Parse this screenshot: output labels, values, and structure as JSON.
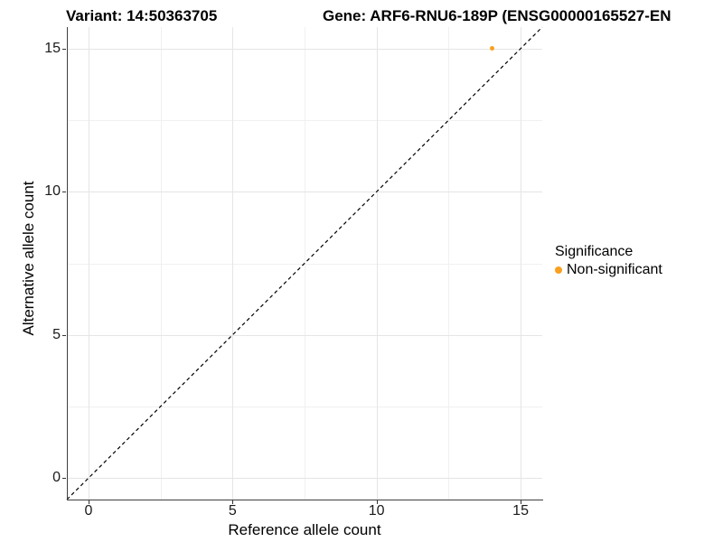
{
  "titles": {
    "variant": "Variant: 14:50363705",
    "gene": "Gene: ARF6-RNU6-189P (ENSG00000165527-EN"
  },
  "chart_data": {
    "type": "scatter",
    "title_left": "Variant: 14:50363705",
    "title_right": "Gene: ARF6-RNU6-189P (ENSG00000165527-EN",
    "xlabel": "Reference allele count",
    "ylabel": "Alternative allele count",
    "xlim": [
      -0.75,
      15.75
    ],
    "ylim": [
      -0.75,
      15.75
    ],
    "x_major_ticks": [
      0,
      5,
      10,
      15
    ],
    "y_major_ticks": [
      0,
      5,
      10,
      15
    ],
    "x_minor_gridlines": [
      2.5,
      7.5,
      12.5
    ],
    "y_minor_gridlines": [
      2.5,
      7.5,
      12.5
    ],
    "grid": true,
    "identity_line": {
      "equation": "y = x",
      "style": "dashed",
      "color": "#000000",
      "from": [
        -0.75,
        -0.75
      ],
      "to": [
        15.75,
        15.75
      ]
    },
    "series": [
      {
        "name": "Non-significant",
        "color": "#F9A01F",
        "point_radius_px": 2.6,
        "points": [
          [
            14,
            15
          ]
        ]
      }
    ],
    "legend": {
      "title": "Significance",
      "position": "right",
      "items": [
        {
          "label": "Non-significant",
          "color": "#F9A01F"
        }
      ]
    }
  },
  "colors": {
    "background": "#ffffff",
    "axis_line": "#3f3f3f",
    "major_grid": "#e5e5e5",
    "minor_grid": "#f0f0f0",
    "tick_text": "#1a1a1a",
    "point_orange": "#F9A01F"
  }
}
